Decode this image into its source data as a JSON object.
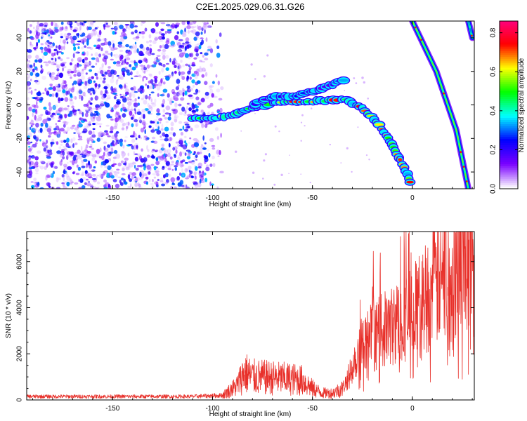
{
  "chart_data": [
    {
      "type": "heatmap",
      "title": "C2E1.2025.029.06.31.G26",
      "xlabel": "Height of straight line (km)",
      "ylabel": "Frequency (Hz)",
      "xlim": [
        -193,
        31
      ],
      "ylim": [
        -50,
        50
      ],
      "xticks": [
        -150,
        -100,
        -50,
        0
      ],
      "yticks": [
        -40,
        -20,
        0,
        20,
        40
      ],
      "colorbar": {
        "label": "Normalized spectral amplitude",
        "range": [
          0,
          0.86
        ],
        "ticks": [
          0.0,
          0.2,
          0.4,
          0.6,
          0.8
        ],
        "colors": [
          "#ffffff",
          "#7a00ff",
          "#0000ff",
          "#00ffff",
          "#00ff00",
          "#ffff00",
          "#ff0000",
          "#ff0080"
        ]
      },
      "features": [
        {
          "name": "noise",
          "x_range": [
            -193,
            -95
          ],
          "y_range": [
            -50,
            50
          ],
          "amplitude": 0.1
        },
        {
          "name": "signal",
          "points": [
            [
              -110,
              -8
            ],
            [
              -100,
              -8
            ],
            [
              -90,
              -6
            ],
            [
              -80,
              -2
            ],
            [
              -70,
              1
            ],
            [
              -60,
              2
            ],
            [
              -50,
              2
            ],
            [
              -40,
              3
            ],
            [
              -33,
              3
            ],
            [
              -25,
              -2
            ],
            [
              -18,
              -10
            ],
            [
              -12,
              -20
            ],
            [
              -6,
              -33
            ],
            [
              0,
              -48
            ]
          ],
          "amplitude": 0.5
        },
        {
          "name": "signal",
          "points": [
            [
              -80,
              0
            ],
            [
              -70,
              5
            ],
            [
              -60,
              5
            ],
            [
              -50,
              8
            ],
            [
              -40,
              12
            ],
            [
              -33,
              16
            ]
          ],
          "amplitude": 0.25
        },
        {
          "name": "line",
          "points": [
            [
              0,
              50
            ],
            [
              12,
              20
            ],
            [
              22,
              -15
            ],
            [
              28,
              -50
            ]
          ],
          "amplitude": 0.55
        },
        {
          "name": "line",
          "points": [
            [
              28,
              50
            ],
            [
              30,
              40
            ]
          ],
          "amplitude": 0.3
        }
      ]
    },
    {
      "type": "line",
      "xlabel": "Height of straight line (km)",
      "ylabel": "SNR (10 * v/v)",
      "xlim": [
        -193,
        31
      ],
      "ylim": [
        0,
        7300
      ],
      "xticks": [
        -150,
        -100,
        -50,
        0
      ],
      "yticks": [
        0,
        2000,
        4000,
        6000
      ],
      "color": "#e8302a",
      "envelope": {
        "x": [
          -193,
          -150,
          -110,
          -95,
          -88,
          -84,
          -80,
          -70,
          -60,
          -55,
          -50,
          -45,
          -40,
          -35,
          -32,
          -28,
          -24,
          -20,
          -15,
          -10,
          -5,
          0,
          5,
          10,
          15,
          20,
          25,
          31
        ],
        "y": [
          150,
          150,
          150,
          200,
          600,
          1200,
          1000,
          950,
          900,
          850,
          500,
          300,
          300,
          500,
          1000,
          2000,
          2400,
          2700,
          3000,
          3200,
          3500,
          3800,
          4300,
          4800,
          5200,
          5500,
          5800,
          6100
        ]
      }
    }
  ]
}
